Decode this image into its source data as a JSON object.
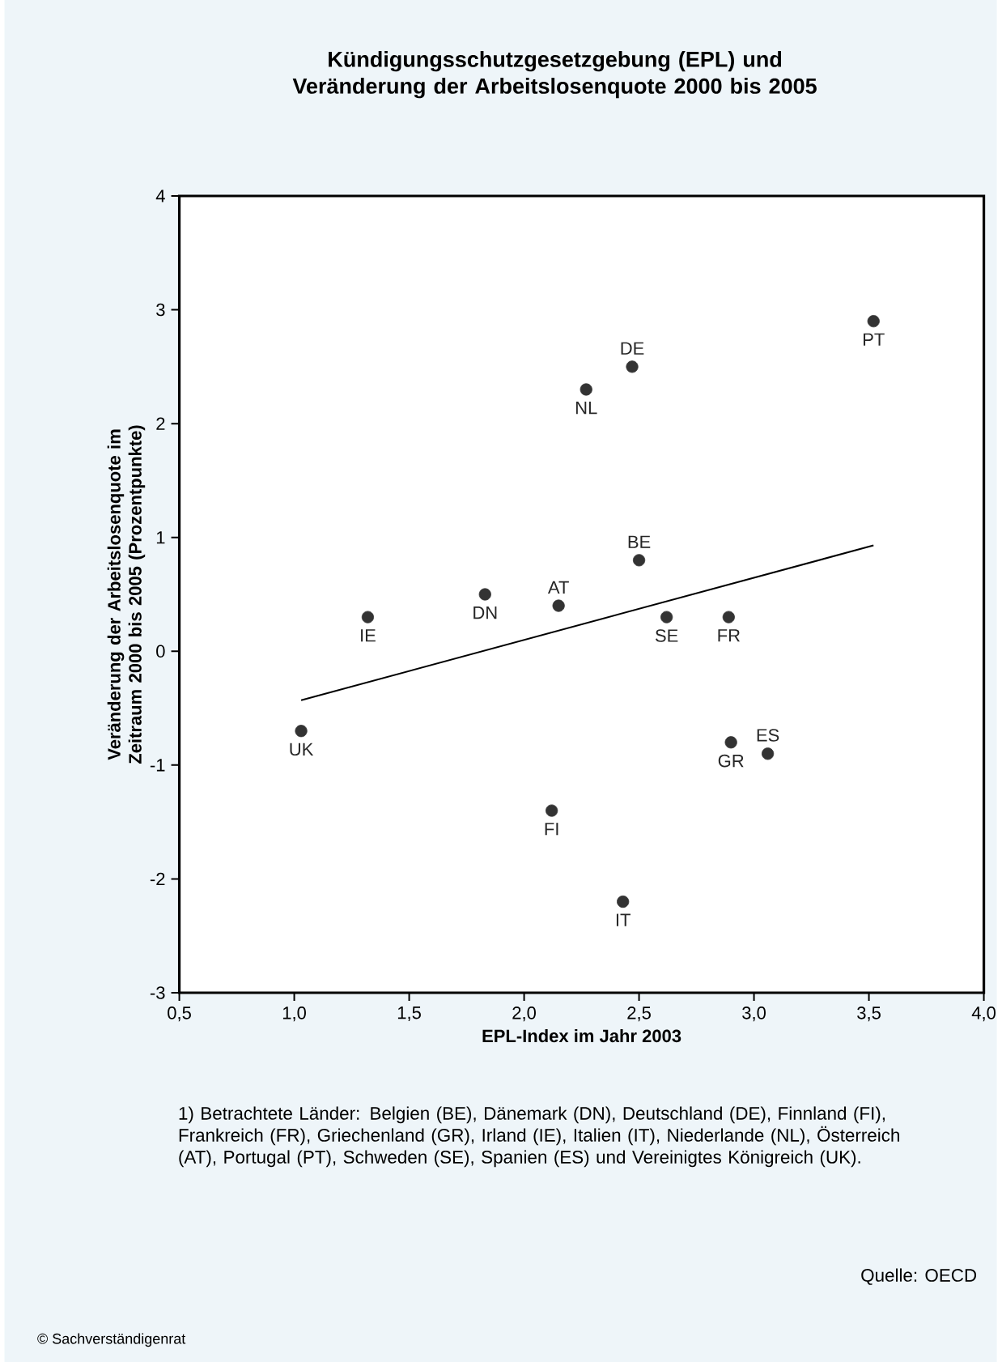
{
  "chart_data": {
    "type": "scatter",
    "title": "Kündigungsschutzgesetzgebung (EPL) und Veränderung der Arbeitslosenquote 2000 bis 2005",
    "xlabel": "EPL-Index im Jahr 2003",
    "ylabel": "Veränderung der Arbeitslosenquote im Zeitraum 2000 bis 2005 (Prozentpunkte)",
    "xlim": [
      0.5,
      4.0
    ],
    "xticks": [
      {
        "value": 0.5,
        "label": "0,5"
      },
      {
        "value": 1.0,
        "label": "1,0"
      },
      {
        "value": 1.5,
        "label": "1,5"
      },
      {
        "value": 2.0,
        "label": "2,0"
      },
      {
        "value": 2.5,
        "label": "2,5"
      },
      {
        "value": 3.0,
        "label": "3,0"
      },
      {
        "value": 3.5,
        "label": "3,5"
      },
      {
        "value": 4.0,
        "label": "4,0"
      }
    ],
    "ylim": [
      -3,
      4
    ],
    "yticks": [
      -3,
      -2,
      -1,
      0,
      1,
      2,
      3,
      4
    ],
    "grid": false,
    "marker": "circle",
    "series": [
      {
        "type": "scatter",
        "color": "#333333",
        "x": [
          1.03,
          1.32,
          1.83,
          2.15,
          2.12,
          2.27,
          2.47,
          2.5,
          2.43,
          2.62,
          2.89,
          2.9,
          3.06,
          3.52
        ],
        "values": [
          -0.7,
          0.3,
          0.5,
          0.4,
          -1.4,
          2.3,
          2.5,
          0.8,
          -2.2,
          0.3,
          0.3,
          -0.8,
          -0.9,
          2.9
        ]
      },
      {
        "type": "line",
        "marker": "none",
        "color": "#000000",
        "x": [
          1.03,
          3.52
        ],
        "values": [
          -0.43,
          0.93
        ]
      }
    ],
    "annotations": [
      "1) Betrachtete Länder: Belgien (BE), Dänemark (DN), Deutschland (DE), Finnland (FI), Frankreich (FR), Griechenland (GR), Irland (IE), Italien (IT), Niederlande (NL), Österreich (AT), Portugal (PT), Schweden (SE), Spanien (ES) und Vereinigtes Königreich (UK).",
      "Quelle: OECD",
      "© Sachverständigenrat",
      {
        "text": "UK",
        "x": 1.03,
        "y": -0.7
      },
      {
        "text": "IE",
        "x": 1.32,
        "y": 0.3
      },
      {
        "text": "DN",
        "x": 1.83,
        "y": 0.5
      },
      {
        "text": "AT",
        "x": 2.15,
        "y": 0.4
      },
      {
        "text": "FI",
        "x": 2.12,
        "y": -1.4
      },
      {
        "text": "NL",
        "x": 2.27,
        "y": 2.3
      },
      {
        "text": "DE",
        "x": 2.47,
        "y": 2.5
      },
      {
        "text": "BE",
        "x": 2.5,
        "y": 0.8
      },
      {
        "text": "IT",
        "x": 2.43,
        "y": -2.2
      },
      {
        "text": "SE",
        "x": 2.62,
        "y": 0.3
      },
      {
        "text": "FR",
        "x": 2.89,
        "y": 0.3
      },
      {
        "text": "GR",
        "x": 2.9,
        "y": -0.8
      },
      {
        "text": "ES",
        "x": 3.06,
        "y": -0.9
      },
      {
        "text": "PT",
        "x": 3.52,
        "y": 2.9
      }
    ]
  }
}
